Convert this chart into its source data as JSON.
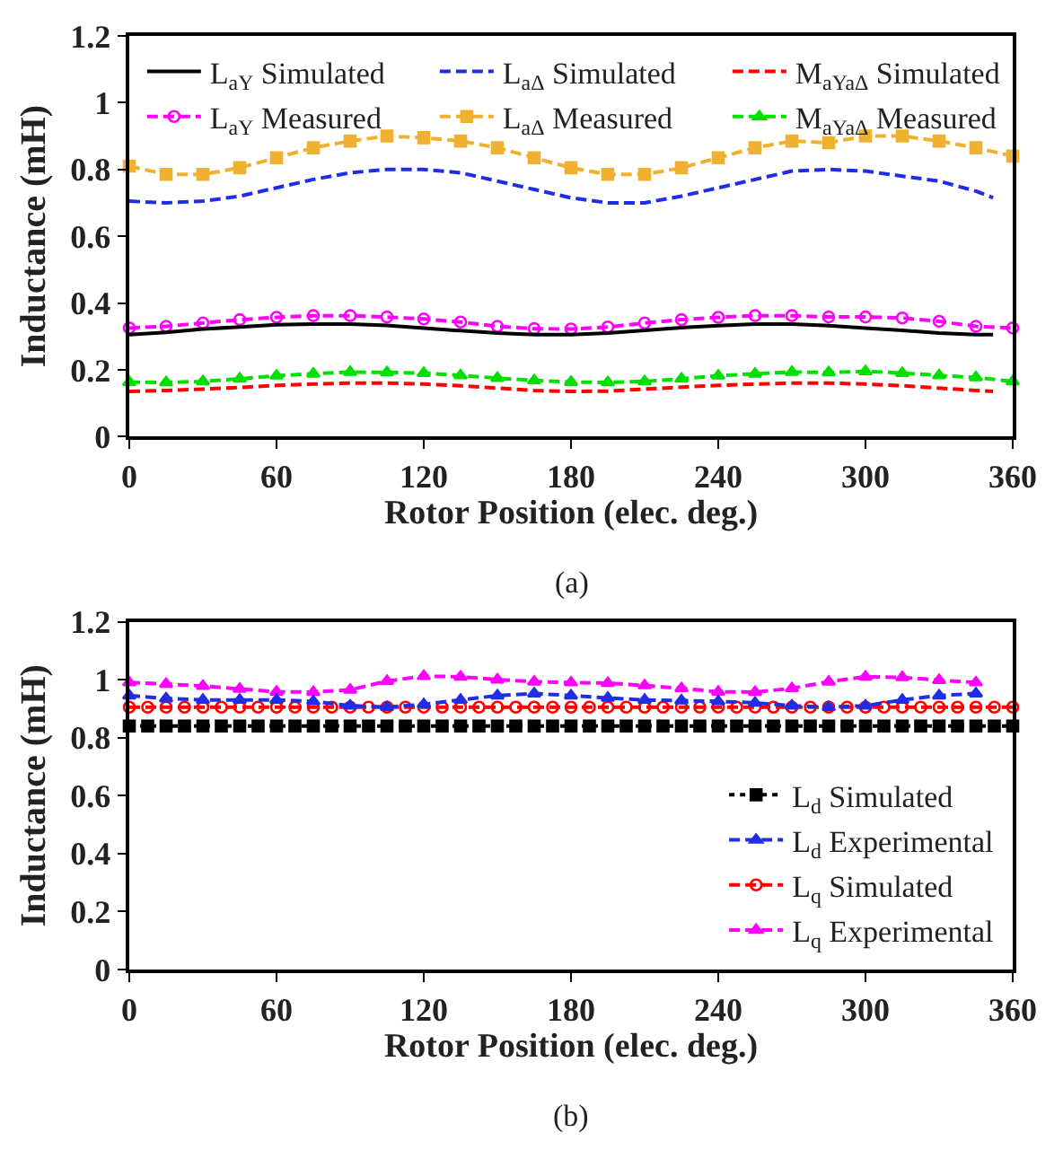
{
  "chart_data": [
    {
      "type": "line",
      "xlabel": "Rotor Position (elec. deg.)",
      "ylabel": "Inductance (mH)",
      "xlim": [
        0,
        360
      ],
      "xticks": [
        0,
        60,
        120,
        180,
        240,
        300,
        360
      ],
      "ylim": [
        0,
        1.2
      ],
      "yticks": [
        0,
        0.2,
        0.4,
        0.6,
        0.8,
        1,
        1.2
      ],
      "legend": "top",
      "annotations": [
        "(a)"
      ],
      "series": [
        {
          "name": "L$_{aY}$ Simulated",
          "color": "#000000",
          "line_style": "solid",
          "marker": "none",
          "x": [
            0,
            15,
            30,
            45,
            60,
            75,
            90,
            105,
            120,
            135,
            150,
            165,
            180,
            195,
            210,
            225,
            240,
            255,
            270,
            285,
            300,
            315,
            330,
            345,
            352
          ],
          "values": [
            0.305,
            0.312,
            0.322,
            0.328,
            0.335,
            0.337,
            0.337,
            0.333,
            0.325,
            0.317,
            0.31,
            0.305,
            0.305,
            0.31,
            0.318,
            0.326,
            0.332,
            0.337,
            0.337,
            0.332,
            0.325,
            0.318,
            0.31,
            0.305,
            0.305
          ]
        },
        {
          "name": "L$_{aΔ}$ Simulated",
          "color": "#1f2ee6",
          "line_style": "dashed",
          "marker": "none",
          "x": [
            0,
            15,
            30,
            45,
            60,
            75,
            90,
            105,
            120,
            135,
            150,
            165,
            180,
            195,
            210,
            225,
            240,
            255,
            270,
            285,
            300,
            315,
            330,
            345,
            352
          ],
          "values": [
            0.705,
            0.7,
            0.705,
            0.72,
            0.745,
            0.77,
            0.79,
            0.8,
            0.8,
            0.79,
            0.765,
            0.74,
            0.715,
            0.7,
            0.7,
            0.72,
            0.745,
            0.77,
            0.795,
            0.8,
            0.795,
            0.78,
            0.765,
            0.735,
            0.715
          ]
        },
        {
          "name": "M$_{aYaΔ}$ Simulated",
          "color": "#ff0000",
          "line_style": "dashed",
          "marker": "none",
          "x": [
            0,
            15,
            30,
            45,
            60,
            75,
            90,
            105,
            120,
            135,
            150,
            165,
            180,
            195,
            210,
            225,
            240,
            255,
            270,
            285,
            300,
            315,
            330,
            345,
            352
          ],
          "values": [
            0.135,
            0.138,
            0.142,
            0.147,
            0.153,
            0.157,
            0.16,
            0.16,
            0.157,
            0.152,
            0.145,
            0.138,
            0.135,
            0.136,
            0.142,
            0.148,
            0.153,
            0.157,
            0.16,
            0.16,
            0.157,
            0.152,
            0.145,
            0.138,
            0.135
          ]
        },
        {
          "name": "L$_{aY}$ Measured",
          "color": "#ff00ff",
          "line_style": "dashed",
          "marker": "circle",
          "x": [
            0,
            15,
            30,
            45,
            60,
            75,
            90,
            105,
            120,
            135,
            150,
            165,
            180,
            195,
            210,
            225,
            240,
            255,
            270,
            285,
            300,
            315,
            330,
            345,
            360
          ],
          "values": [
            0.325,
            0.33,
            0.34,
            0.35,
            0.357,
            0.362,
            0.362,
            0.358,
            0.352,
            0.343,
            0.33,
            0.323,
            0.322,
            0.328,
            0.34,
            0.35,
            0.357,
            0.362,
            0.362,
            0.358,
            0.358,
            0.355,
            0.345,
            0.33,
            0.325
          ]
        },
        {
          "name": "L$_{aΔ}$ Measured",
          "color": "#f0b030",
          "line_style": "dashed",
          "marker": "square",
          "x": [
            0,
            15,
            30,
            45,
            60,
            75,
            90,
            105,
            120,
            135,
            150,
            165,
            180,
            195,
            210,
            225,
            240,
            255,
            270,
            285,
            300,
            315,
            330,
            345,
            360
          ],
          "values": [
            0.81,
            0.785,
            0.785,
            0.805,
            0.835,
            0.865,
            0.885,
            0.9,
            0.895,
            0.885,
            0.865,
            0.835,
            0.805,
            0.785,
            0.785,
            0.805,
            0.835,
            0.865,
            0.885,
            0.88,
            0.9,
            0.9,
            0.885,
            0.865,
            0.84
          ]
        },
        {
          "name": "M$_{aYaΔ}$ Measured",
          "color": "#00e000",
          "line_style": "dashed",
          "marker": "triangle",
          "x": [
            0,
            15,
            30,
            45,
            60,
            75,
            90,
            105,
            120,
            135,
            150,
            165,
            180,
            195,
            210,
            225,
            240,
            255,
            270,
            285,
            300,
            315,
            330,
            345,
            360
          ],
          "values": [
            0.163,
            0.162,
            0.165,
            0.173,
            0.182,
            0.188,
            0.193,
            0.192,
            0.19,
            0.183,
            0.175,
            0.168,
            0.163,
            0.162,
            0.165,
            0.173,
            0.182,
            0.188,
            0.193,
            0.192,
            0.195,
            0.19,
            0.183,
            0.177,
            0.165
          ]
        }
      ]
    },
    {
      "type": "line",
      "xlabel": "Rotor Position (elec. deg.)",
      "ylabel": "Inductance (mH)",
      "xlim": [
        0,
        360
      ],
      "xticks": [
        0,
        60,
        120,
        180,
        240,
        300,
        360
      ],
      "ylim": [
        0,
        1.2
      ],
      "yticks": [
        0,
        0.2,
        0.4,
        0.6,
        0.8,
        1,
        1.2
      ],
      "legend": "bottom right",
      "annotations": [
        "(b)"
      ],
      "series": [
        {
          "name": "L$_{d}$ Simulated",
          "color": "#000000",
          "line_style": "dotted",
          "marker": "square",
          "x": [
            0,
            7.5,
            15,
            22.5,
            30,
            37.5,
            45,
            52.5,
            60,
            67.5,
            75,
            82.5,
            90,
            97.5,
            105,
            112.5,
            120,
            127.5,
            135,
            142.5,
            150,
            157.5,
            165,
            172.5,
            180,
            187.5,
            195,
            202.5,
            210,
            217.5,
            225,
            232.5,
            240,
            247.5,
            255,
            262.5,
            270,
            277.5,
            285,
            292.5,
            300,
            307.5,
            315,
            322.5,
            330,
            337.5,
            345,
            352.5,
            360
          ],
          "values": [
            0.84,
            0.84,
            0.84,
            0.84,
            0.84,
            0.84,
            0.84,
            0.84,
            0.84,
            0.84,
            0.84,
            0.84,
            0.84,
            0.84,
            0.84,
            0.84,
            0.84,
            0.84,
            0.84,
            0.84,
            0.84,
            0.84,
            0.84,
            0.84,
            0.84,
            0.84,
            0.84,
            0.84,
            0.84,
            0.84,
            0.84,
            0.84,
            0.84,
            0.84,
            0.84,
            0.84,
            0.84,
            0.84,
            0.84,
            0.84,
            0.84,
            0.84,
            0.84,
            0.84,
            0.84,
            0.84,
            0.84,
            0.84,
            0.84
          ]
        },
        {
          "name": "L$_{d}$ Experimental",
          "color": "#1f2ee6",
          "line_style": "dashed",
          "marker": "triangle",
          "x": [
            0,
            15,
            30,
            45,
            60,
            75,
            90,
            105,
            120,
            135,
            150,
            165,
            180,
            195,
            210,
            225,
            240,
            255,
            270,
            285,
            300,
            315,
            330,
            345
          ],
          "values": [
            0.945,
            0.935,
            0.93,
            0.93,
            0.93,
            0.925,
            0.91,
            0.905,
            0.915,
            0.93,
            0.945,
            0.952,
            0.945,
            0.937,
            0.93,
            0.928,
            0.925,
            0.92,
            0.91,
            0.905,
            0.91,
            0.93,
            0.945,
            0.952
          ]
        },
        {
          "name": "L$_{q}$ Simulated",
          "color": "#ff0000",
          "line_style": "dashed",
          "marker": "circle",
          "x": [
            0,
            7.5,
            15,
            22.5,
            30,
            37.5,
            45,
            52.5,
            60,
            67.5,
            75,
            82.5,
            90,
            97.5,
            105,
            112.5,
            120,
            127.5,
            135,
            142.5,
            150,
            157.5,
            165,
            172.5,
            180,
            187.5,
            195,
            202.5,
            210,
            217.5,
            225,
            232.5,
            240,
            247.5,
            255,
            262.5,
            270,
            277.5,
            285,
            292.5,
            300,
            307.5,
            315,
            322.5,
            330,
            337.5,
            345,
            352.5,
            360
          ],
          "values": [
            0.905,
            0.905,
            0.905,
            0.905,
            0.905,
            0.905,
            0.905,
            0.905,
            0.905,
            0.905,
            0.905,
            0.905,
            0.905,
            0.905,
            0.905,
            0.905,
            0.905,
            0.905,
            0.905,
            0.905,
            0.905,
            0.905,
            0.905,
            0.905,
            0.905,
            0.905,
            0.905,
            0.905,
            0.905,
            0.905,
            0.905,
            0.905,
            0.905,
            0.905,
            0.905,
            0.905,
            0.905,
            0.905,
            0.905,
            0.905,
            0.905,
            0.905,
            0.905,
            0.905,
            0.905,
            0.905,
            0.905,
            0.905,
            0.905
          ]
        },
        {
          "name": "L$_{q}$ Experimental",
          "color": "#ff00ff",
          "line_style": "dashed",
          "marker": "triangle",
          "x": [
            0,
            15,
            30,
            45,
            60,
            75,
            90,
            105,
            120,
            135,
            150,
            165,
            180,
            195,
            210,
            225,
            240,
            255,
            270,
            285,
            300,
            315,
            330,
            345
          ],
          "values": [
            0.99,
            0.985,
            0.978,
            0.968,
            0.958,
            0.957,
            0.965,
            0.995,
            1.012,
            1.01,
            1.0,
            0.993,
            0.99,
            0.988,
            0.98,
            0.97,
            0.958,
            0.957,
            0.97,
            0.993,
            1.01,
            1.008,
            0.998,
            0.99
          ]
        }
      ]
    }
  ]
}
